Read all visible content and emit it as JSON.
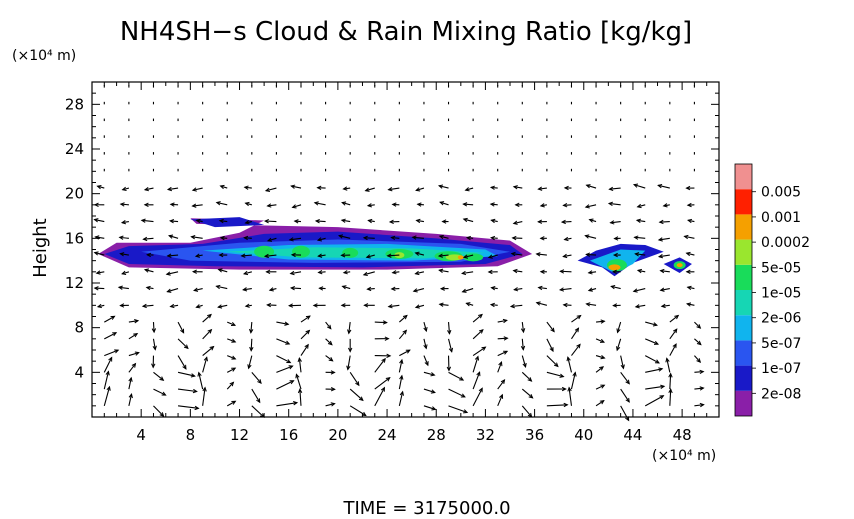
{
  "chart_data": {
    "type": "contour",
    "title": "NH4SH−s Cloud & Rain Mixing Ratio [kg/kg]",
    "y_unit_label": "(×10⁴ m)",
    "x_unit_label": "(×10⁴ m)",
    "ylabel": "Height",
    "footer": "TIME = 3175000.0",
    "xlim": [
      0,
      51
    ],
    "ylim": [
      0,
      30
    ],
    "x_ticks": [
      "4",
      "8",
      "12",
      "16",
      "20",
      "24",
      "28",
      "32",
      "36",
      "40",
      "44",
      "48"
    ],
    "y_ticks": [
      "4",
      "8",
      "12",
      "16",
      "20",
      "24",
      "28"
    ],
    "colorbar": {
      "levels": [
        "2e-08",
        "1e-07",
        "5e-07",
        "2e-06",
        "1e-05",
        "5e-05",
        "0.0002",
        "0.001",
        "0.005"
      ],
      "colors": [
        "#8a1fa8",
        "#1919c8",
        "#2a55f0",
        "#10b4ee",
        "#16d6b4",
        "#19dc5a",
        "#9ae62e",
        "#f5a000",
        "#ff2000",
        "#f09090"
      ]
    },
    "cloud_regions": [
      {
        "x_range": [
          0.5,
          36
        ],
        "y_range": [
          13,
          18
        ],
        "peak": "5e-05"
      },
      {
        "x_range": [
          40,
          45
        ],
        "y_range": [
          12.5,
          15.5
        ],
        "peak": "0.0002"
      },
      {
        "x_range": [
          46.5,
          49
        ],
        "y_range": [
          13,
          14
        ],
        "peak": "0.0002"
      }
    ],
    "grid": false
  }
}
